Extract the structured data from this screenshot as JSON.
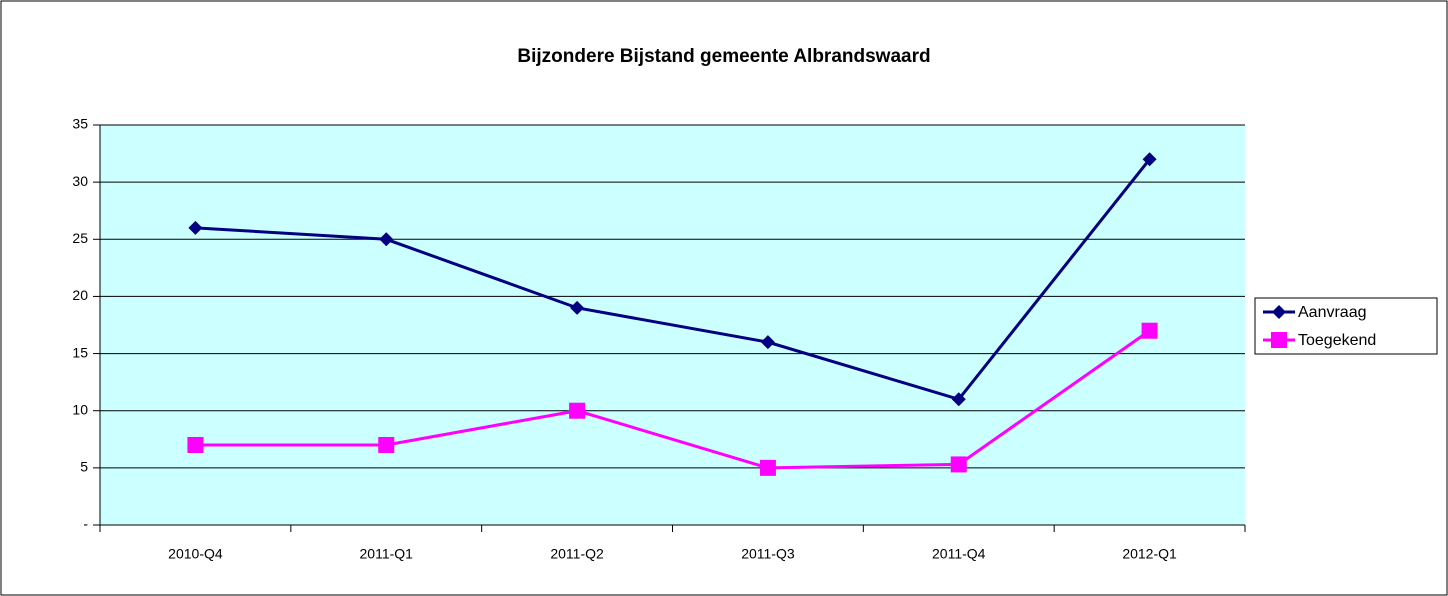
{
  "chart_data": {
    "type": "line",
    "title": "Bijzondere Bijstand gemeente Albrandswaard",
    "categories": [
      "2010-Q4",
      "2011-Q1",
      "2011-Q2",
      "2011-Q3",
      "2011-Q4",
      "2012-Q1"
    ],
    "series": [
      {
        "name": "Aanvraag",
        "color": "#000080",
        "marker": "diamond",
        "values": [
          26,
          25,
          19,
          16,
          11,
          32
        ]
      },
      {
        "name": "Toegekend",
        "color": "#ff00ff",
        "marker": "square",
        "values": [
          7,
          7,
          10,
          5,
          5.3,
          17
        ]
      }
    ],
    "ylim": [
      0,
      35
    ],
    "yticks": [
      {
        "value": 0,
        "label": "-"
      },
      5,
      10,
      15,
      20,
      25,
      30,
      35
    ],
    "grid": true,
    "legend": "right",
    "plot_background": "#ccffff"
  }
}
